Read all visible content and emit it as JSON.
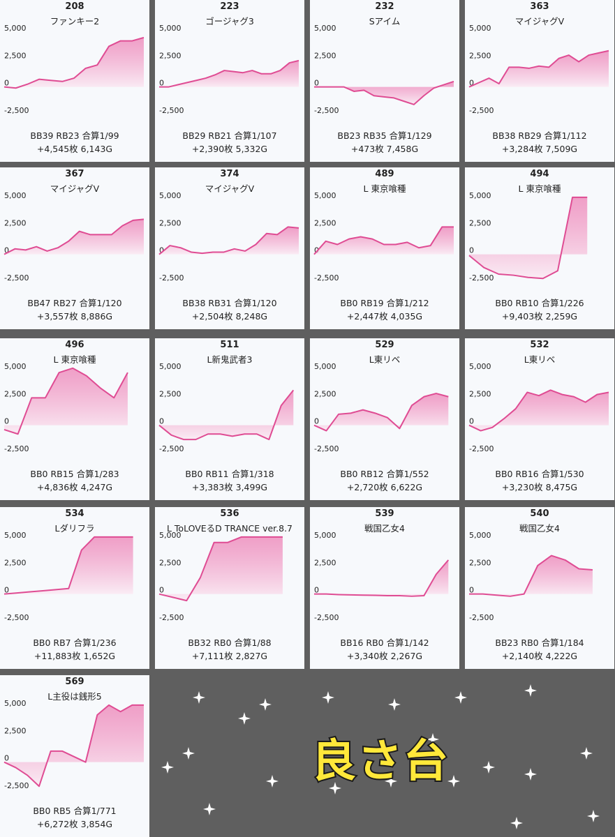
{
  "title": "良さ台",
  "colors": {
    "line": "#df4c93",
    "fill_top": "#e9559c",
    "fill_bottom": "#fbe6f1",
    "card_bg": "#f7f9fc",
    "moon": "#f5ef8e",
    "star": "#ffffff",
    "title_fill": "#ffe83a"
  },
  "y_ticks": [
    "5,000",
    "2,500",
    "0",
    "-2,500"
  ],
  "chart_data": [
    {
      "type": "area",
      "machine": "208",
      "model": "ファンキー2",
      "stats_line1": "BB39 RB23 合算1/99",
      "stats_line2": "+4,545枚 6,143G",
      "ylim": [
        -3500,
        5500
      ],
      "values": [
        0,
        -100,
        250,
        700,
        600,
        500,
        800,
        1700,
        2000,
        3700,
        4200,
        4200,
        4500
      ]
    },
    {
      "type": "area",
      "machine": "223",
      "model": "ゴージャグ3",
      "stats_line1": "BB29 RB21 合算1/107",
      "stats_line2": "+2,390枚 5,332G",
      "ylim": [
        -3500,
        5500
      ],
      "values": [
        0,
        0,
        200,
        400,
        600,
        800,
        1100,
        1500,
        1400,
        1300,
        1500,
        1200,
        1200,
        1500,
        2200,
        2400
      ]
    },
    {
      "type": "area",
      "machine": "232",
      "model": "Sアイム",
      "stats_line1": "BB23 RB35 合算1/129",
      "stats_line2": "+473枚 7,458G",
      "ylim": [
        -3500,
        5500
      ],
      "values": [
        0,
        0,
        0,
        0,
        -400,
        -300,
        -800,
        -900,
        -1000,
        -1300,
        -1600,
        -800,
        -100,
        200,
        500
      ]
    },
    {
      "type": "area",
      "machine": "363",
      "model": "マイジャグV",
      "stats_line1": "BB38 RB29 合算1/112",
      "stats_line2": "+3,284枚 7,509G",
      "ylim": [
        -3500,
        5500
      ],
      "values": [
        0,
        400,
        800,
        300,
        1800,
        1800,
        1700,
        1900,
        1800,
        2600,
        2900,
        2300,
        2900,
        3100,
        3300
      ]
    },
    {
      "type": "area",
      "machine": "367",
      "model": "マイジャグV",
      "stats_line1": "BB47 RB27 合算1/120",
      "stats_line2": "+3,557枚 8,886G",
      "ylim": [
        -3500,
        5500
      ],
      "values": [
        0,
        500,
        400,
        700,
        300,
        600,
        1200,
        2100,
        1800,
        1800,
        1800,
        2600,
        3100,
        3200
      ]
    },
    {
      "type": "area",
      "machine": "374",
      "model": "マイジャグV",
      "stats_line1": "BB38 RB31 合算1/120",
      "stats_line2": "+2,504枚 8,248G",
      "ylim": [
        -3500,
        5500
      ],
      "values": [
        0,
        800,
        600,
        200,
        100,
        200,
        200,
        500,
        300,
        900,
        1900,
        1800,
        2500,
        2400
      ]
    },
    {
      "type": "area",
      "machine": "489",
      "model": "L 東京喰種",
      "stats_line1": "BB0 RB19 合算1/212",
      "stats_line2": "+2,447枚 4,035G",
      "ylim": [
        -3500,
        5500
      ],
      "values": [
        0,
        1200,
        900,
        1400,
        1600,
        1400,
        900,
        900,
        1100,
        600,
        800,
        2500,
        2500
      ]
    },
    {
      "type": "area",
      "machine": "494",
      "model": "L 東京喰種",
      "stats_line1": "BB0 RB10 合算1/226",
      "stats_line2": "+9,403枚 2,259G",
      "ylim": [
        -3500,
        5500
      ],
      "values": [
        -100,
        -1200,
        -1800,
        -1900,
        -2100,
        -2200,
        -1500,
        5200,
        5200
      ]
    },
    {
      "type": "area",
      "machine": "496",
      "model": "L 東京喰種",
      "stats_line1": "BB0 RB15 合算1/283",
      "stats_line2": "+4,836枚 4,247G",
      "ylim": [
        -3500,
        5500
      ],
      "values": [
        -400,
        -800,
        2500,
        2500,
        4800,
        5200,
        4500,
        3400,
        2500,
        4800
      ]
    },
    {
      "type": "area",
      "machine": "511",
      "model": "L新鬼武者3",
      "stats_line1": "BB0 RB11 合算1/318",
      "stats_line2": "+3,383枚 3,499G",
      "ylim": [
        -3500,
        5500
      ],
      "values": [
        0,
        -900,
        -1300,
        -1300,
        -800,
        -800,
        -1000,
        -800,
        -800,
        -1300,
        1800,
        3200
      ]
    },
    {
      "type": "area",
      "machine": "529",
      "model": "L東リベ",
      "stats_line1": "BB0 RB12 合算1/552",
      "stats_line2": "+2,720枚 6,622G",
      "ylim": [
        -3500,
        5500
      ],
      "values": [
        0,
        -500,
        1000,
        1100,
        1400,
        1100,
        700,
        -300,
        1800,
        2600,
        2900,
        2600
      ]
    },
    {
      "type": "area",
      "machine": "532",
      "model": "L東リベ",
      "stats_line1": "BB0 RB16 合算1/530",
      "stats_line2": "+3,230枚 8,475G",
      "ylim": [
        -3500,
        5500
      ],
      "values": [
        0,
        -500,
        -200,
        600,
        1500,
        3000,
        2700,
        3200,
        2800,
        2600,
        2100,
        2800,
        3000
      ]
    },
    {
      "type": "area",
      "machine": "534",
      "model": "Lダリフラ",
      "stats_line1": "BB0 RB7 合算1/236",
      "stats_line2": "+11,883枚 1,652G",
      "ylim": [
        -3500,
        5500
      ],
      "values": [
        0,
        100,
        200,
        300,
        400,
        500,
        4000,
        5200,
        5200,
        5200,
        5200
      ]
    },
    {
      "type": "area",
      "machine": "536",
      "model": "L ToLOVEるD TRANCE ver.8.7",
      "stats_line1": "BB32 RB0 合算1/88",
      "stats_line2": "+7,111枚 2,827G",
      "ylim": [
        -3500,
        5500
      ],
      "values": [
        0,
        -300,
        -600,
        1500,
        4700,
        4700,
        5200,
        5200,
        5200,
        5200
      ]
    },
    {
      "type": "area",
      "machine": "539",
      "model": "戦国乙女4",
      "stats_line1": "BB16 RB0 合算1/142",
      "stats_line2": "+3,340枚 2,267G",
      "ylim": [
        -3500,
        5500
      ],
      "values": [
        0,
        0,
        -50,
        -80,
        -100,
        -120,
        -150,
        -150,
        -200,
        -150,
        1800,
        3100
      ]
    },
    {
      "type": "area",
      "machine": "540",
      "model": "戦国乙女4",
      "stats_line1": "BB23 RB0 合算1/184",
      "stats_line2": "+2,140枚 4,222G",
      "ylim": [
        -3500,
        5500
      ],
      "values": [
        0,
        0,
        -100,
        -200,
        0,
        2600,
        3500,
        3100,
        2300,
        2200
      ]
    },
    {
      "type": "area",
      "machine": "569",
      "model": "L主役は銭形5",
      "stats_line1": "BB0 RB5 合算1/771",
      "stats_line2": "+6,272枚 3,854G",
      "ylim": [
        -3500,
        5500
      ],
      "values": [
        0,
        -500,
        -1200,
        -2200,
        1000,
        1000,
        500,
        0,
        4300,
        5300,
        4600,
        5200,
        5200
      ]
    }
  ]
}
